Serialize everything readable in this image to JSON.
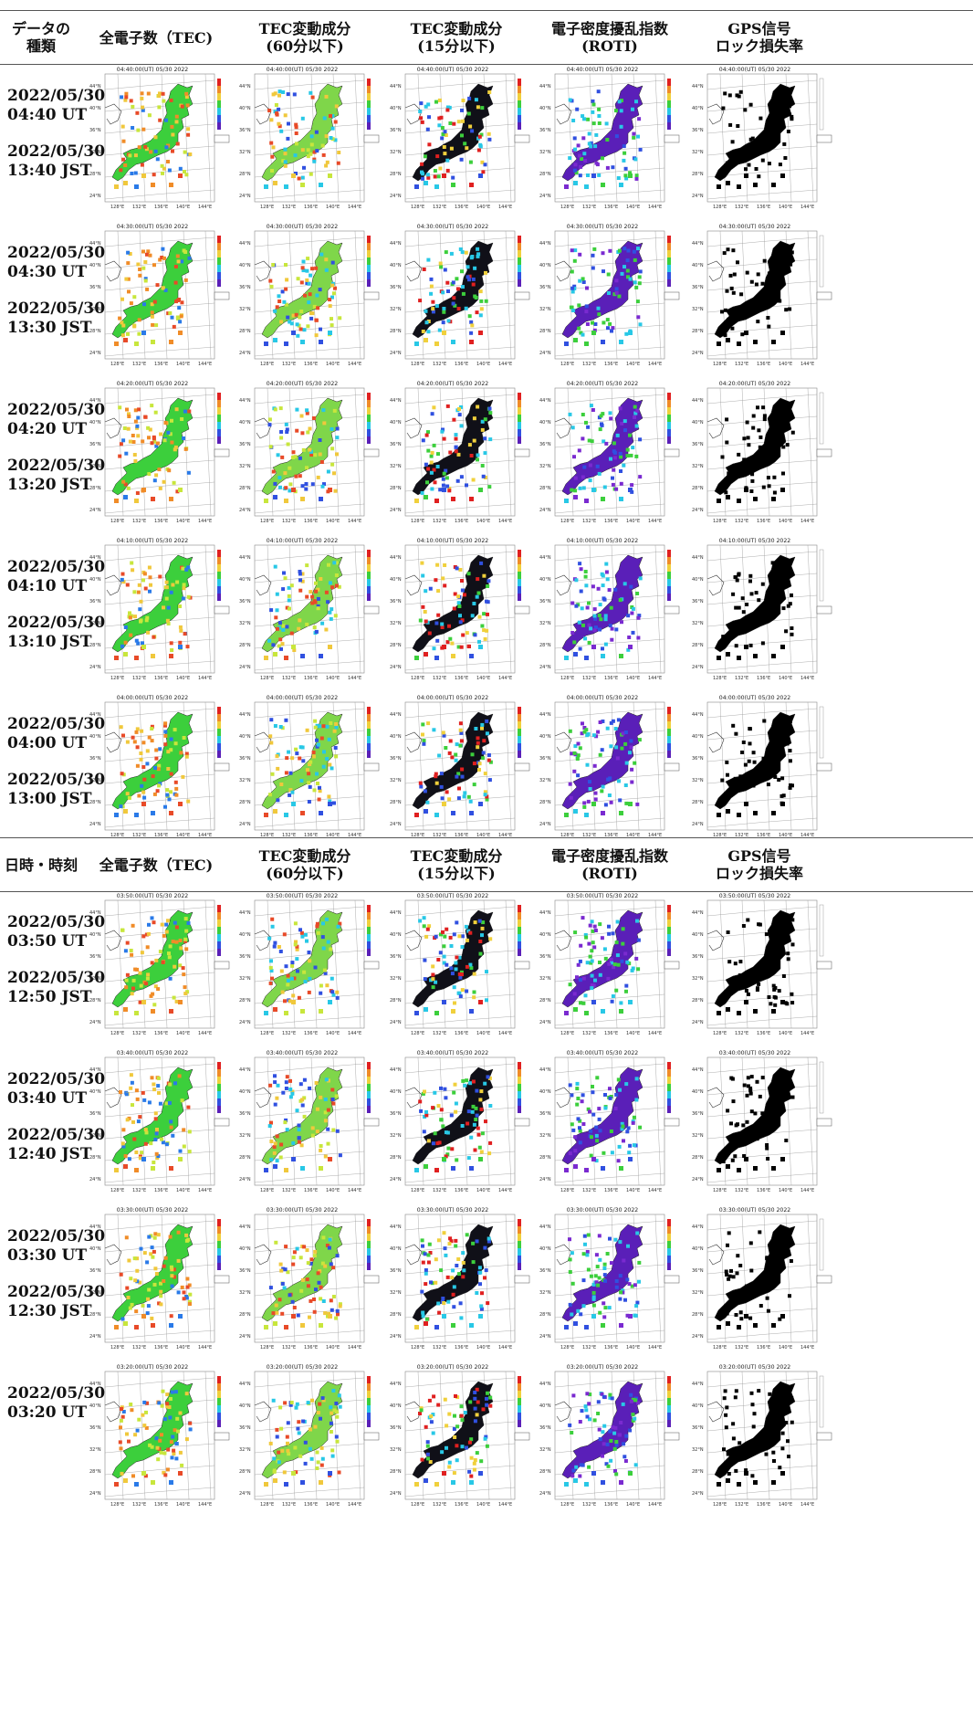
{
  "headers": [
    [
      "データの\n種類",
      "全電子数（TEC)",
      "TEC変動成分\n(60分以下)",
      "TEC変動成分\n(15分以下)",
      "電子密度擾乱指数\n(ROTI)",
      "GPS信号\nロック損失率"
    ],
    [
      "日時・時刻",
      "全電子数（TEC)",
      "TEC変動成分\n(60分以下)",
      "TEC変動成分\n(15分以下)",
      "電子密度擾乱指数\n(ROTI)",
      "GPS信号\nロック損失率"
    ]
  ],
  "rows": [
    {
      "utc_date": "2022/05/30",
      "utc_time": "04:40 UT",
      "jst_date": "2022/05/30",
      "jst_time": "13:40 JST",
      "map_title": "04:40:00(UT) 05/30 2022"
    },
    {
      "utc_date": "2022/05/30",
      "utc_time": "04:30 UT",
      "jst_date": "2022/05/30",
      "jst_time": "13:30 JST",
      "map_title": "04:30:00(UT) 05/30 2022"
    },
    {
      "utc_date": "2022/05/30",
      "utc_time": "04:20 UT",
      "jst_date": "2022/05/30",
      "jst_time": "13:20 JST",
      "map_title": "04:20:00(UT) 05/30 2022"
    },
    {
      "utc_date": "2022/05/30",
      "utc_time": "04:10 UT",
      "jst_date": "2022/05/30",
      "jst_time": "13:10 JST",
      "map_title": "04:10:00(UT) 05/30 2022"
    },
    {
      "utc_date": "2022/05/30",
      "utc_time": "04:00 UT",
      "jst_date": "2022/05/30",
      "jst_time": "13:00 JST",
      "map_title": "04:00:00(UT) 05/30 2022"
    },
    {
      "utc_date": "2022/05/30",
      "utc_time": "03:50 UT",
      "jst_date": "2022/05/30",
      "jst_time": "12:50 JST",
      "map_title": "03:50:00(UT) 05/30 2022"
    },
    {
      "utc_date": "2022/05/30",
      "utc_time": "03:40 UT",
      "jst_date": "2022/05/30",
      "jst_time": "12:40 JST",
      "map_title": "03:40:00(UT) 05/30 2022"
    },
    {
      "utc_date": "2022/05/30",
      "utc_time": "03:30 UT",
      "jst_date": "2022/05/30",
      "jst_time": "12:30 JST",
      "map_title": "03:30:00(UT) 05/30 2022"
    },
    {
      "utc_date": "2022/05/30",
      "utc_time": "03:20 UT",
      "jst_date": "",
      "jst_time": "",
      "map_title": "03:20:00(UT) 05/30 2022"
    }
  ],
  "map_axes": {
    "lat_labels": [
      "44°N",
      "40°N",
      "36°N",
      "32°N",
      "28°N",
      "24°N"
    ],
    "lon_labels": [
      "128°E",
      "132°E",
      "136°E",
      "140°E",
      "144°E"
    ]
  },
  "map_styles": [
    {
      "name": "tec",
      "base": "#3ccf3c",
      "spots": [
        "#c8e63c",
        "#f0c83c",
        "#f08c28",
        "#e84a28",
        "#2a7ae8"
      ]
    },
    {
      "name": "dtec60",
      "base": "#7fd64a",
      "spots": [
        "#c8e63c",
        "#f0c83c",
        "#e84a28",
        "#28c8e6",
        "#3050e0"
      ]
    },
    {
      "name": "dtec15",
      "base": "#101018",
      "spots": [
        "#e02020",
        "#3050e0",
        "#28c8e6",
        "#f0d03c",
        "#3ccf3c"
      ]
    },
    {
      "name": "roti",
      "base": "#5a1fb8",
      "spots": [
        "#3050e0",
        "#28c8e6",
        "#3ccf3c",
        "#7a2ad0"
      ]
    },
    {
      "name": "lol",
      "base": "#000000",
      "spots": [
        "#000000"
      ]
    }
  ]
}
